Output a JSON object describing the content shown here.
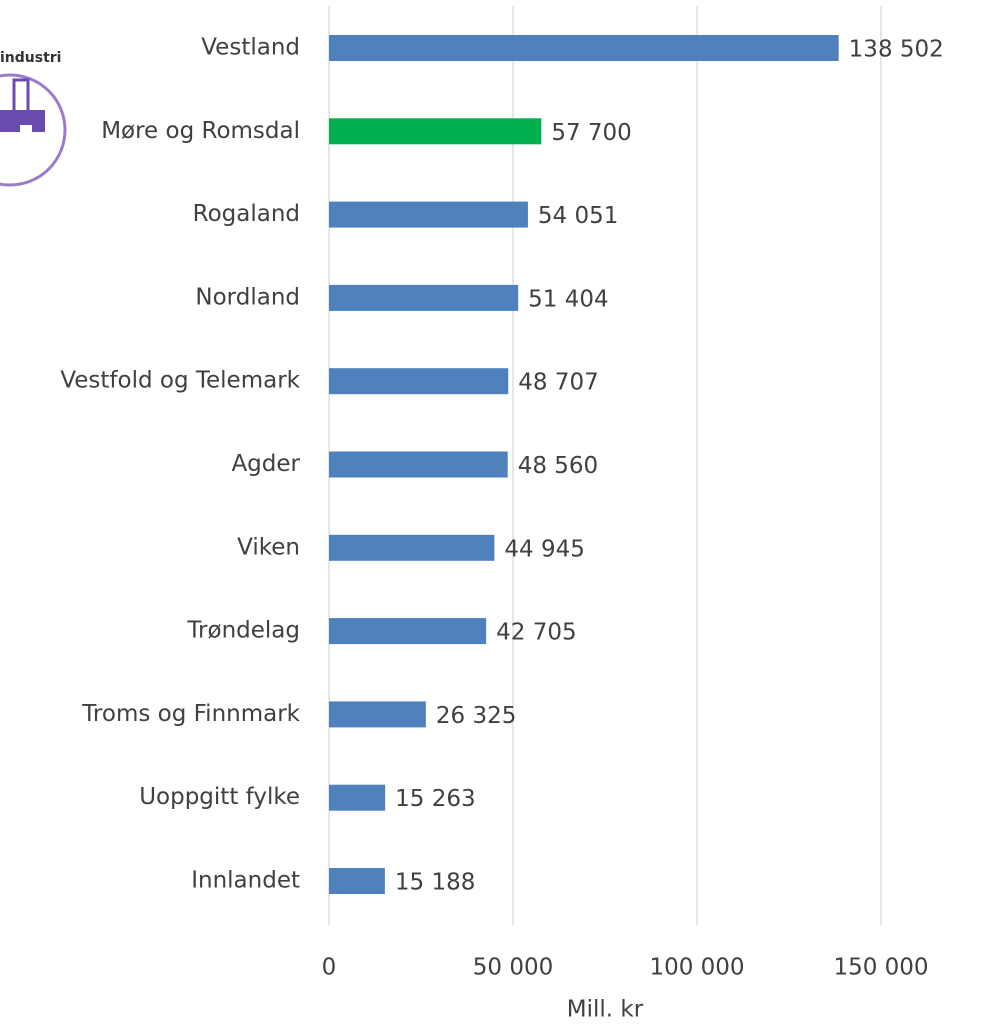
{
  "logo_text": "industri",
  "chart_data": {
    "type": "barh",
    "categories": [
      "Vestland",
      "Møre og Romsdal",
      "Rogaland",
      "Nordland",
      "Vestfold og Telemark",
      "Agder",
      "Viken",
      "Trøndelag",
      "Troms og Finnmark",
      "Uoppgitt fylke",
      "Innlandet"
    ],
    "values": [
      138502,
      57700,
      54051,
      51404,
      48707,
      48560,
      44945,
      42705,
      26325,
      15263,
      15188
    ],
    "value_labels": [
      "138 502",
      "57 700",
      "54 051",
      "51 404",
      "48 707",
      "48 560",
      "44 945",
      "42 705",
      "26 325",
      "15 263",
      "15 188"
    ],
    "colors": [
      "#4f81bd",
      "#00b050",
      "#4f81bd",
      "#4f81bd",
      "#4f81bd",
      "#4f81bd",
      "#4f81bd",
      "#4f81bd",
      "#4f81bd",
      "#4f81bd",
      "#4f81bd"
    ],
    "xlim": [
      0,
      150000
    ],
    "xticks": [
      0,
      {
        "value": 50000,
        "label": "50 000"
      },
      {
        "value": 100000,
        "label": "100 000"
      },
      {
        "value": 150000,
        "label": "150 000"
      }
    ],
    "xlabel": "Mill. kr",
    "grid": true
  }
}
